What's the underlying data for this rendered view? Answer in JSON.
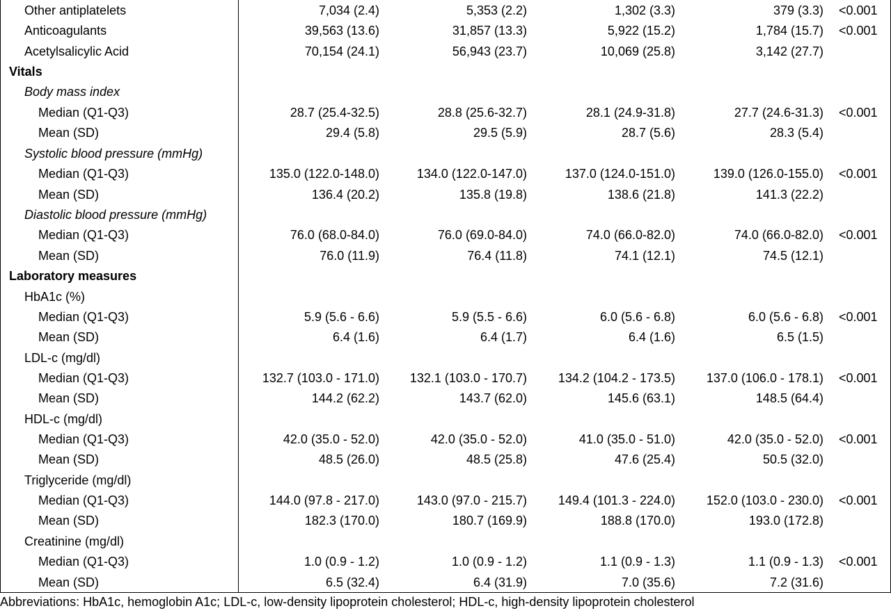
{
  "rows": [
    {
      "label": "Other antiplatelets",
      "c1": "7,034 (2.4)",
      "c2": "5,353 (2.2)",
      "c3": "1,302 (3.3)",
      "c4": "379 (3.3)",
      "p": "<0.001"
    },
    {
      "label": "Anticoagulants",
      "c1": "39,563 (13.6)",
      "c2": "31,857 (13.3)",
      "c3": "5,922 (15.2)",
      "c4": "1,784 (15.7)",
      "p": "<0.001"
    },
    {
      "label": "Acetylsalicylic Acid",
      "c1": "70,154 (24.1)",
      "c2": "56,943 (23.7)",
      "c3": "10,069 (25.8)",
      "c4": "3,142 (27.7)",
      "p": ""
    },
    {
      "label": "Vitals"
    },
    {
      "label": "Body mass index"
    },
    {
      "label": "Median (Q1-Q3)",
      "c1": "28.7 (25.4-32.5)",
      "c2": "28.8 (25.6-32.7)",
      "c3": "28.1 (24.9-31.8)",
      "c4": "27.7 (24.6-31.3)",
      "p": "<0.001"
    },
    {
      "label": "Mean (SD)",
      "c1": "29.4 (5.8)",
      "c2": "29.5 (5.9)",
      "c3": "28.7 (5.6)",
      "c4": "28.3 (5.4)",
      "p": ""
    },
    {
      "label": "Systolic blood pressure (mmHg)"
    },
    {
      "label": "Median (Q1-Q3)",
      "c1": "135.0 (122.0-148.0)",
      "c2": "134.0 (122.0-147.0)",
      "c3": "137.0 (124.0-151.0)",
      "c4": "139.0 (126.0-155.0)",
      "p": "<0.001"
    },
    {
      "label": "Mean (SD)",
      "c1": "136.4 (20.2)",
      "c2": "135.8 (19.8)",
      "c3": "138.6 (21.8)",
      "c4": "141.3 (22.2)",
      "p": ""
    },
    {
      "label": "Diastolic blood pressure (mmHg)"
    },
    {
      "label": "Median (Q1-Q3)",
      "c1": "76.0 (68.0-84.0)",
      "c2": "76.0 (69.0-84.0)",
      "c3": "74.0 (66.0-82.0)",
      "c4": "74.0 (66.0-82.0)",
      "p": "<0.001"
    },
    {
      "label": "Mean (SD)",
      "c1": "76.0 (11.9)",
      "c2": "76.4 (11.8)",
      "c3": "74.1 (12.1)",
      "c4": "74.5 (12.1)",
      "p": ""
    },
    {
      "label": "Laboratory measures"
    },
    {
      "label": "HbA1c (%)"
    },
    {
      "label": "Median (Q1-Q3)",
      "c1": "5.9 (5.6 - 6.6)",
      "c2": "5.9 (5.5 - 6.6)",
      "c3": "6.0 (5.6 - 6.8)",
      "c4": "6.0 (5.6 - 6.8)",
      "p": "<0.001"
    },
    {
      "label": "Mean (SD)",
      "c1": "6.4 (1.6)",
      "c2": "6.4 (1.7)",
      "c3": "6.4 (1.6)",
      "c4": "6.5 (1.5)",
      "p": ""
    },
    {
      "label": "LDL-c (mg/dl)"
    },
    {
      "label": "Median (Q1-Q3)",
      "c1": "132.7 (103.0 - 171.0)",
      "c2": "132.1 (103.0 - 170.7)",
      "c3": "134.2 (104.2 - 173.5)",
      "c4": "137.0 (106.0 - 178.1)",
      "p": "<0.001"
    },
    {
      "label": "Mean (SD)",
      "c1": "144.2 (62.2)",
      "c2": "143.7 (62.0)",
      "c3": "145.6 (63.1)",
      "c4": "148.5 (64.4)",
      "p": ""
    },
    {
      "label": "HDL-c (mg/dl)"
    },
    {
      "label": "Median (Q1-Q3)",
      "c1": "42.0 (35.0 - 52.0)",
      "c2": "42.0 (35.0 - 52.0)",
      "c3": "41.0 (35.0 - 51.0)",
      "c4": "42.0 (35.0 - 52.0)",
      "p": "<0.001"
    },
    {
      "label": "Mean (SD)",
      "c1": "48.5 (26.0)",
      "c2": "48.5 (25.8)",
      "c3": "47.6 (25.4)",
      "c4": "50.5 (32.0)",
      "p": ""
    },
    {
      "label": "Triglyceride (mg/dl)"
    },
    {
      "label": "Median (Q1-Q3)",
      "c1": "144.0 (97.8 - 217.0)",
      "c2": "143.0 (97.0 - 215.7)",
      "c3": "149.4 (101.3 - 224.0)",
      "c4": "152.0 (103.0 - 230.0)",
      "p": "<0.001"
    },
    {
      "label": "Mean (SD)",
      "c1": "182.3 (170.0)",
      "c2": "180.7 (169.9)",
      "c3": "188.8 (170.0)",
      "c4": "193.0 (172.8)",
      "p": ""
    },
    {
      "label": "Creatinine (mg/dl)"
    },
    {
      "label": "Median (Q1-Q3)",
      "c1": "1.0 (0.9 - 1.2)",
      "c2": "1.0 (0.9 - 1.2)",
      "c3": "1.1 (0.9 - 1.3)",
      "c4": "1.1 (0.9 - 1.3)",
      "p": "<0.001"
    },
    {
      "label": "Mean (SD)",
      "c1": "6.5 (32.4)",
      "c2": "6.4 (31.9)",
      "c3": "7.0 (35.6)",
      "c4": "7.2 (31.6)",
      "p": ""
    }
  ],
  "footnote": "Abbreviations: HbA1c, hemoglobin A1c; LDL-c, low-density lipoprotein cholesterol; HDL-c, high-density lipoprotein cholesterol"
}
